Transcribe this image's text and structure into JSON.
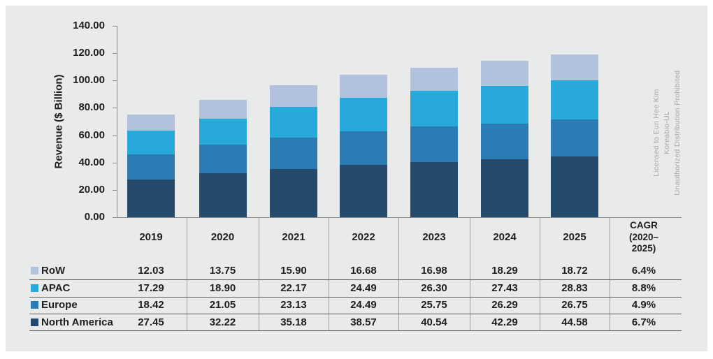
{
  "chart_data": {
    "type": "bar",
    "stacked": true,
    "title": "",
    "xlabel": "",
    "ylabel": "Revenue ($ Billion)",
    "ylim": [
      0,
      140
    ],
    "ytick_step": 20,
    "yticks": [
      "0.00",
      "20.00",
      "40.00",
      "60.00",
      "80.00",
      "100.00",
      "120.00",
      "140.00"
    ],
    "grid": false,
    "legend_position": "table-rows-left",
    "categories": [
      "2019",
      "2020",
      "2021",
      "2022",
      "2023",
      "2024",
      "2025"
    ],
    "series": [
      {
        "name": "North America",
        "color": "#254a6b",
        "values": [
          27.45,
          32.22,
          35.18,
          38.57,
          40.54,
          42.29,
          44.58
        ]
      },
      {
        "name": "Europe",
        "color": "#2b7cb4",
        "values": [
          18.42,
          21.05,
          23.13,
          24.49,
          25.75,
          26.29,
          26.75
        ]
      },
      {
        "name": "APAC",
        "color": "#27a9da",
        "values": [
          17.29,
          18.9,
          22.17,
          24.49,
          26.3,
          27.43,
          28.83
        ]
      },
      {
        "name": "RoW",
        "color": "#b2c2dc",
        "values": [
          12.03,
          13.75,
          15.9,
          16.68,
          16.98,
          18.29,
          18.72
        ]
      }
    ]
  },
  "table": {
    "year_headers": [
      "2019",
      "2020",
      "2021",
      "2022",
      "2023",
      "2024",
      "2025"
    ],
    "cagr_header_lines": [
      "CAGR",
      "(2020–",
      "2025)"
    ],
    "rows": [
      {
        "label": "RoW",
        "color": "#b2c2dc",
        "values": [
          "12.03",
          "13.75",
          "15.90",
          "16.68",
          "16.98",
          "18.29",
          "18.72"
        ],
        "cagr": "6.4%"
      },
      {
        "label": "APAC",
        "color": "#27a9da",
        "values": [
          "17.29",
          "18.90",
          "22.17",
          "24.49",
          "26.30",
          "27.43",
          "28.83"
        ],
        "cagr": "8.8%"
      },
      {
        "label": "Europe",
        "color": "#2b7cb4",
        "values": [
          "18.42",
          "21.05",
          "23.13",
          "24.49",
          "25.75",
          "26.29",
          "26.75"
        ],
        "cagr": "4.9%"
      },
      {
        "label": "North America",
        "color": "#254a6b",
        "values": [
          "27.45",
          "32.22",
          "35.18",
          "38.57",
          "40.54",
          "42.29",
          "44.58"
        ],
        "cagr": "6.7%"
      }
    ]
  },
  "watermark": {
    "lines": [
      "Licensed to Eun Hee Kim",
      "Koreabio-UL",
      "Unauthorized Distribution Prohibited"
    ]
  },
  "colors": {
    "panel_background": "#e9eaea",
    "axis": "#8a8a8a",
    "table_horizontal_line": "#606060",
    "table_vertical_line": "#9b9b9b",
    "text": "#1f1f1f",
    "watermark": "#a6a6a8"
  }
}
